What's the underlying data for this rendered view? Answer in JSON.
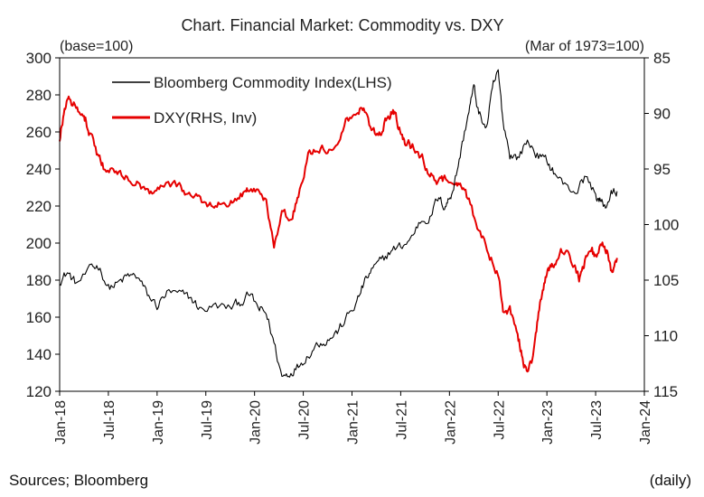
{
  "chart_data": {
    "type": "line",
    "title": "Chart. Financial Market: Commodity vs. DXY",
    "left_unit": "(base=100)",
    "right_unit": "(Mar of 1973=100)",
    "left_axis": {
      "min": 120,
      "max": 300,
      "ticks": [
        120,
        140,
        160,
        180,
        200,
        220,
        240,
        260,
        280,
        300
      ]
    },
    "right_axis": {
      "min": 85,
      "max": 115,
      "inverted": true,
      "ticks": [
        85,
        90,
        95,
        100,
        105,
        110,
        115
      ]
    },
    "x_axis": {
      "start": 2018.0,
      "end": 2024.0,
      "ticks": [
        {
          "t": 2018.0,
          "label": "Jan-18"
        },
        {
          "t": 2018.5,
          "label": "Jul-18"
        },
        {
          "t": 2019.0,
          "label": "Jan-19"
        },
        {
          "t": 2019.5,
          "label": "Jul-19"
        },
        {
          "t": 2020.0,
          "label": "Jan-20"
        },
        {
          "t": 2020.5,
          "label": "Jul-20"
        },
        {
          "t": 2021.0,
          "label": "Jan-21"
        },
        {
          "t": 2021.5,
          "label": "Jul-21"
        },
        {
          "t": 2022.0,
          "label": "Jan-22"
        },
        {
          "t": 2022.5,
          "label": "Jul-22"
        },
        {
          "t": 2023.0,
          "label": "Jan-23"
        },
        {
          "t": 2023.5,
          "label": "Jul-23"
        },
        {
          "t": 2024.0,
          "label": "Jan-24"
        }
      ]
    },
    "series": [
      {
        "name": "Bloomberg Commodity Index(LHS)",
        "axis": "left",
        "color": "#000000",
        "points": [
          [
            2018.0,
            180
          ],
          [
            2018.08,
            184
          ],
          [
            2018.17,
            178
          ],
          [
            2018.33,
            186
          ],
          [
            2018.4,
            188
          ],
          [
            2018.5,
            176
          ],
          [
            2018.6,
            178
          ],
          [
            2018.7,
            182
          ],
          [
            2018.8,
            182
          ],
          [
            2018.9,
            172
          ],
          [
            2019.0,
            166
          ],
          [
            2019.1,
            173
          ],
          [
            2019.25,
            172
          ],
          [
            2019.35,
            170
          ],
          [
            2019.45,
            164
          ],
          [
            2019.6,
            166
          ],
          [
            2019.75,
            165
          ],
          [
            2019.85,
            168
          ],
          [
            2019.95,
            172
          ],
          [
            2020.05,
            164
          ],
          [
            2020.12,
            162
          ],
          [
            2020.2,
            146
          ],
          [
            2020.28,
            128
          ],
          [
            2020.36,
            130
          ],
          [
            2020.45,
            134
          ],
          [
            2020.55,
            140
          ],
          [
            2020.65,
            146
          ],
          [
            2020.75,
            148
          ],
          [
            2020.85,
            152
          ],
          [
            2020.95,
            160
          ],
          [
            2021.05,
            168
          ],
          [
            2021.12,
            178
          ],
          [
            2021.2,
            185
          ],
          [
            2021.3,
            190
          ],
          [
            2021.4,
            196
          ],
          [
            2021.5,
            198
          ],
          [
            2021.6,
            202
          ],
          [
            2021.7,
            212
          ],
          [
            2021.8,
            214
          ],
          [
            2021.88,
            224
          ],
          [
            2021.95,
            220
          ],
          [
            2022.0,
            224
          ],
          [
            2022.05,
            232
          ],
          [
            2022.12,
            250
          ],
          [
            2022.2,
            272
          ],
          [
            2022.25,
            284
          ],
          [
            2022.3,
            270
          ],
          [
            2022.38,
            262
          ],
          [
            2022.45,
            285
          ],
          [
            2022.5,
            292
          ],
          [
            2022.55,
            266
          ],
          [
            2022.62,
            248
          ],
          [
            2022.7,
            246
          ],
          [
            2022.8,
            255
          ],
          [
            2022.9,
            248
          ],
          [
            2023.0,
            244
          ],
          [
            2023.08,
            238
          ],
          [
            2023.2,
            230
          ],
          [
            2023.3,
            228
          ],
          [
            2023.4,
            236
          ],
          [
            2023.5,
            226
          ],
          [
            2023.55,
            222
          ],
          [
            2023.6,
            220
          ],
          [
            2023.66,
            226
          ],
          [
            2023.72,
            228
          ]
        ]
      },
      {
        "name": "DXY(RHS, Inv)",
        "axis": "right",
        "color": "#e60000",
        "points": [
          [
            2018.0,
            92.5
          ],
          [
            2018.05,
            89.5
          ],
          [
            2018.1,
            88.8
          ],
          [
            2018.18,
            89.5
          ],
          [
            2018.25,
            90.0
          ],
          [
            2018.3,
            91.5
          ],
          [
            2018.38,
            93.5
          ],
          [
            2018.45,
            94.8
          ],
          [
            2018.55,
            95.0
          ],
          [
            2018.65,
            95.5
          ],
          [
            2018.75,
            96.0
          ],
          [
            2018.85,
            96.8
          ],
          [
            2018.95,
            97.0
          ],
          [
            2019.05,
            96.2
          ],
          [
            2019.2,
            96.5
          ],
          [
            2019.3,
            97.0
          ],
          [
            2019.4,
            97.5
          ],
          [
            2019.5,
            98.0
          ],
          [
            2019.6,
            98.2
          ],
          [
            2019.7,
            98.0
          ],
          [
            2019.8,
            97.5
          ],
          [
            2019.9,
            97.2
          ],
          [
            2019.95,
            97.0
          ],
          [
            2020.05,
            97.0
          ],
          [
            2020.12,
            98.0
          ],
          [
            2020.2,
            102.0
          ],
          [
            2020.28,
            99.0
          ],
          [
            2020.38,
            99.5
          ],
          [
            2020.45,
            97.5
          ],
          [
            2020.55,
            93.5
          ],
          [
            2020.65,
            93.0
          ],
          [
            2020.75,
            93.5
          ],
          [
            2020.85,
            92.5
          ],
          [
            2020.95,
            90.5
          ],
          [
            2021.05,
            90.0
          ],
          [
            2021.12,
            89.5
          ],
          [
            2021.2,
            91.5
          ],
          [
            2021.28,
            92.0
          ],
          [
            2021.35,
            90.5
          ],
          [
            2021.4,
            89.8
          ],
          [
            2021.45,
            90.2
          ],
          [
            2021.5,
            91.8
          ],
          [
            2021.55,
            92.5
          ],
          [
            2021.62,
            93.0
          ],
          [
            2021.72,
            94.0
          ],
          [
            2021.8,
            95.5
          ],
          [
            2021.88,
            96.2
          ],
          [
            2021.95,
            96.0
          ],
          [
            2022.05,
            95.8
          ],
          [
            2022.12,
            96.5
          ],
          [
            2022.2,
            97.8
          ],
          [
            2022.3,
            100.5
          ],
          [
            2022.4,
            102.5
          ],
          [
            2022.5,
            104.5
          ],
          [
            2022.55,
            108.0
          ],
          [
            2022.62,
            107.5
          ],
          [
            2022.7,
            110.0
          ],
          [
            2022.75,
            112.0
          ],
          [
            2022.8,
            113.5
          ],
          [
            2022.85,
            112.0
          ],
          [
            2022.9,
            109.0
          ],
          [
            2022.95,
            106.0
          ],
          [
            2023.0,
            104.5
          ],
          [
            2023.05,
            104.0
          ],
          [
            2023.12,
            102.5
          ],
          [
            2023.2,
            102.0
          ],
          [
            2023.28,
            104.0
          ],
          [
            2023.33,
            105.0
          ],
          [
            2023.38,
            103.5
          ],
          [
            2023.45,
            102.0
          ],
          [
            2023.5,
            103.0
          ],
          [
            2023.57,
            101.5
          ],
          [
            2023.62,
            102.5
          ],
          [
            2023.67,
            104.5
          ],
          [
            2023.72,
            103.0
          ]
        ]
      }
    ]
  },
  "legend": {
    "commodity": "Bloomberg Commodity Index(LHS)",
    "dxy": "DXY(RHS, Inv)"
  },
  "footer": {
    "source": "Sources; Bloomberg",
    "frequency": "(daily)"
  }
}
